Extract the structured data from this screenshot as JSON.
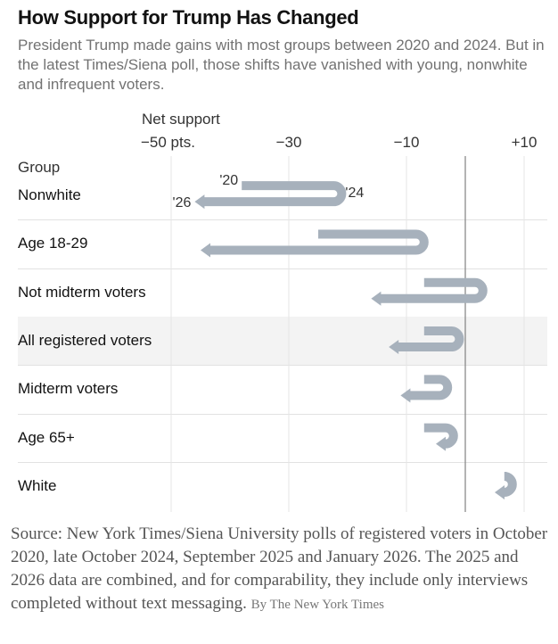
{
  "chart_data": {
    "type": "slope-arrow",
    "title": "How Support for Trump Has Changed",
    "subtitle": "President Trump made gains with most groups between 2020 and 2024. But in the latest Times/Siena poll, those shifts have vanished with young, nonwhite and infrequent voters.",
    "xlabel": "Net support",
    "ylabel": "Group",
    "xlim": [
      -50,
      12
    ],
    "x_ticks": [
      {
        "value": -50,
        "label": "−50 pts."
      },
      {
        "value": -30,
        "label": "−30"
      },
      {
        "value": -10,
        "label": "−10"
      },
      {
        "value": 10,
        "label": "+10"
      }
    ],
    "zero_line": 0,
    "year_labels": {
      "y2020": "'20",
      "y2024": "'24",
      "y2026": "'26"
    },
    "series_names": [
      "2020",
      "2024",
      "2025-26"
    ],
    "groups": [
      {
        "name": "Nonwhite",
        "v2020": -38,
        "v2024": -21,
        "v2026": -46,
        "highlight": false,
        "annotated": true
      },
      {
        "name": "Age 18-29",
        "v2020": -25,
        "v2024": -7,
        "v2026": -45,
        "highlight": false,
        "annotated": false
      },
      {
        "name": "Not midterm voters",
        "v2020": -7,
        "v2024": 3,
        "v2026": -16,
        "highlight": false,
        "annotated": false
      },
      {
        "name": "All registered voters",
        "v2020": -7,
        "v2024": -1,
        "v2026": -13,
        "highlight": true,
        "annotated": false
      },
      {
        "name": "Midterm voters",
        "v2020": -7,
        "v2024": -3,
        "v2026": -11,
        "highlight": false,
        "annotated": false
      },
      {
        "name": "Age 65+",
        "v2020": -7,
        "v2024": -2,
        "v2026": -5,
        "highlight": false,
        "annotated": false
      },
      {
        "name": "White",
        "v2020": 7,
        "v2024": 8,
        "v2026": 5,
        "highlight": false,
        "annotated": false
      }
    ],
    "colors": {
      "arrow": "#a7b1bc",
      "grid": "#e6e6e6",
      "zero": "#8a8a8a",
      "highlight_bg": "#f3f3f3"
    }
  },
  "source": {
    "text": "Source: New York Times/Siena University polls of registered voters in October 2020, late October 2024, September 2025 and January 2026. The 2025 and 2026 data are combined, and for comparability, they include only interviews completed without text messaging.",
    "byline": "By The New York Times"
  }
}
